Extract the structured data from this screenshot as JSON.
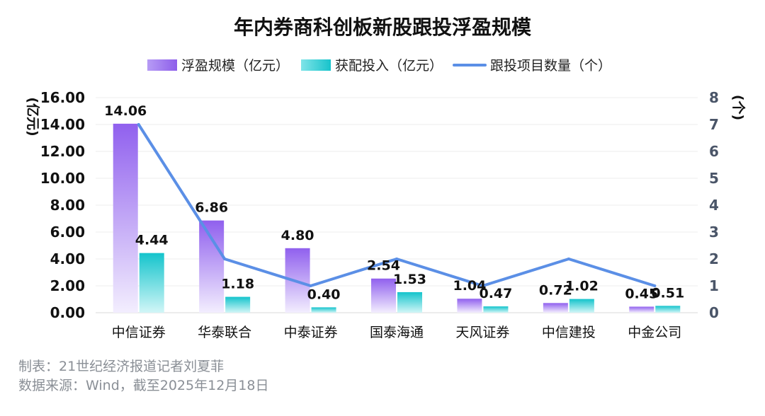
{
  "chart_data": {
    "type": "bar",
    "title": "年内券商科创板新股跟投浮盈规模",
    "categories": [
      "中信证券",
      "华泰联合",
      "中泰证券",
      "国泰海通",
      "天风证券",
      "中信建投",
      "中金公司"
    ],
    "series": [
      {
        "name": "浮盈规模（亿元）",
        "kind": "bar",
        "axis": "left",
        "color": "#9a6ff0",
        "values": [
          14.06,
          6.86,
          4.8,
          2.54,
          1.04,
          0.72,
          0.45
        ]
      },
      {
        "name": "获配投入（亿元）",
        "kind": "bar",
        "axis": "left",
        "color": "#1fc8cf",
        "values": [
          4.44,
          1.18,
          0.4,
          1.53,
          0.47,
          1.02,
          0.51
        ]
      },
      {
        "name": "跟投项目数量（个）",
        "kind": "line",
        "axis": "right",
        "color": "#5b8fe6",
        "values": [
          7,
          2,
          1,
          2,
          1,
          2,
          1
        ]
      }
    ],
    "ylabel_left": "(亿元)",
    "ylabel_right": "(个)",
    "ylim_left": [
      0,
      16
    ],
    "ylim_right": [
      0,
      8
    ],
    "yticks_left": [
      "0.00",
      "2.00",
      "4.00",
      "6.00",
      "8.00",
      "10.00",
      "12.00",
      "14.00",
      "16.00"
    ],
    "yticks_right": [
      "0",
      "1",
      "2",
      "3",
      "4",
      "5",
      "6",
      "7",
      "8"
    ],
    "bar_value_labels": [
      [
        "14.06",
        "6.86",
        "4.80",
        "2.54",
        "1.04",
        "0.72",
        "0.45"
      ],
      [
        "4.44",
        "1.18",
        "0.40",
        "1.53",
        "0.47",
        "1.02",
        "0.51"
      ]
    ],
    "legend_position": "top",
    "grid": true
  },
  "footer": {
    "line1": "制表：21世纪经济报道记者刘夏菲",
    "line2": "数据来源：Wind，截至2025年12月18日"
  }
}
